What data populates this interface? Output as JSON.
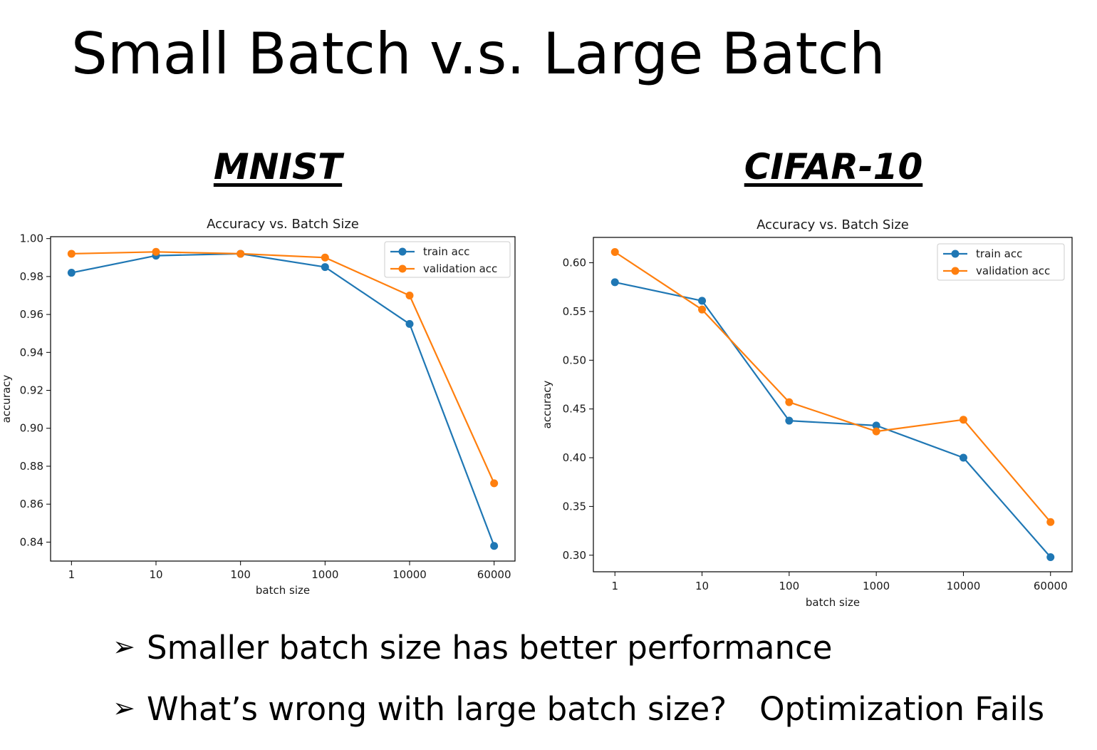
{
  "slide": {
    "title": "Small Batch v.s. Large Batch",
    "bullets": [
      {
        "marker": "➢",
        "text": "Smaller batch size has better performance",
        "answer": ""
      },
      {
        "marker": "➢",
        "text": "What’s wrong with large batch size?",
        "answer": "Optimization Fails"
      }
    ]
  },
  "datasets": [
    "MNIST",
    "CIFAR-10"
  ],
  "colors": {
    "train": "#1f77b4",
    "validation": "#ff7f0e"
  },
  "chart_data": [
    {
      "type": "line",
      "title": "Accuracy vs. Batch Size",
      "xlabel": "batch size",
      "ylabel": "accuracy",
      "categories": [
        "1",
        "10",
        "100",
        "1000",
        "10000",
        "60000"
      ],
      "ylim": [
        0.83,
        1.001
      ],
      "yticks": [
        "0.84",
        "0.86",
        "0.88",
        "0.90",
        "0.92",
        "0.94",
        "0.96",
        "0.98",
        "1.00"
      ],
      "grid": false,
      "legend": "top-right",
      "series": [
        {
          "name": "train acc",
          "values": [
            0.982,
            0.991,
            0.992,
            0.985,
            0.955,
            0.838
          ]
        },
        {
          "name": "validation acc",
          "values": [
            0.992,
            0.993,
            0.992,
            0.99,
            0.97,
            0.871
          ]
        }
      ]
    },
    {
      "type": "line",
      "title": "Accuracy vs. Batch Size",
      "xlabel": "batch size",
      "ylabel": "accuracy",
      "categories": [
        "1",
        "10",
        "100",
        "1000",
        "10000",
        "60000"
      ],
      "ylim": [
        0.283,
        0.626
      ],
      "yticks": [
        "0.30",
        "0.35",
        "0.40",
        "0.45",
        "0.50",
        "0.55",
        "0.60"
      ],
      "grid": false,
      "legend": "top-right",
      "series": [
        {
          "name": "train acc",
          "values": [
            0.58,
            0.561,
            0.438,
            0.433,
            0.4,
            0.298
          ]
        },
        {
          "name": "validation acc",
          "values": [
            0.611,
            0.552,
            0.457,
            0.427,
            0.439,
            0.334
          ]
        }
      ]
    }
  ]
}
